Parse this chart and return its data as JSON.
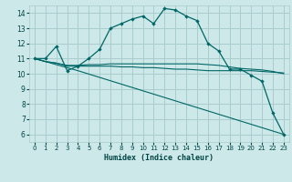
{
  "title": "",
  "xlabel": "Humidex (Indice chaleur)",
  "background_color": "#cce8e8",
  "grid_color": "#aacccc",
  "line_color": "#006666",
  "xlim": [
    -0.5,
    23.5
  ],
  "ylim": [
    5.5,
    14.5
  ],
  "xticks": [
    0,
    1,
    2,
    3,
    4,
    5,
    6,
    7,
    8,
    9,
    10,
    11,
    12,
    13,
    14,
    15,
    16,
    17,
    18,
    19,
    20,
    21,
    22,
    23
  ],
  "yticks": [
    6,
    7,
    8,
    9,
    10,
    11,
    12,
    13,
    14
  ],
  "series": [
    {
      "x": [
        0,
        1,
        2,
        3,
        4,
        5,
        6,
        7,
        8,
        9,
        10,
        11,
        12,
        13,
        14,
        15,
        16,
        17,
        18,
        19,
        20,
        21,
        22,
        23
      ],
      "y": [
        11.0,
        11.0,
        11.8,
        10.2,
        10.5,
        11.0,
        11.6,
        13.0,
        13.3,
        13.6,
        13.8,
        13.3,
        14.3,
        14.2,
        13.8,
        13.5,
        12.0,
        11.5,
        10.3,
        10.3,
        9.9,
        9.5,
        7.4,
        6.0
      ],
      "marker": true
    },
    {
      "x": [
        0,
        1,
        2,
        3,
        4,
        5,
        6,
        7,
        8,
        9,
        10,
        11,
        12,
        13,
        14,
        15,
        16,
        17,
        18,
        19,
        20,
        21,
        22,
        23
      ],
      "y": [
        11.0,
        10.8,
        10.7,
        10.55,
        10.55,
        10.6,
        10.6,
        10.65,
        10.65,
        10.65,
        10.65,
        10.65,
        10.65,
        10.65,
        10.65,
        10.65,
        10.6,
        10.55,
        10.45,
        10.35,
        10.3,
        10.25,
        10.15,
        10.0
      ],
      "marker": false
    },
    {
      "x": [
        0,
        1,
        2,
        3,
        4,
        5,
        6,
        7,
        8,
        9,
        10,
        11,
        12,
        13,
        14,
        15,
        16,
        17,
        18,
        19,
        20,
        21,
        22,
        23
      ],
      "y": [
        11.0,
        10.8,
        10.7,
        10.5,
        10.5,
        10.5,
        10.5,
        10.5,
        10.45,
        10.45,
        10.4,
        10.4,
        10.35,
        10.3,
        10.3,
        10.25,
        10.2,
        10.2,
        10.2,
        10.2,
        10.2,
        10.15,
        10.1,
        10.05
      ],
      "marker": false
    },
    {
      "x": [
        0,
        4,
        23
      ],
      "y": [
        11.0,
        10.2,
        6.0
      ],
      "marker": false
    }
  ]
}
